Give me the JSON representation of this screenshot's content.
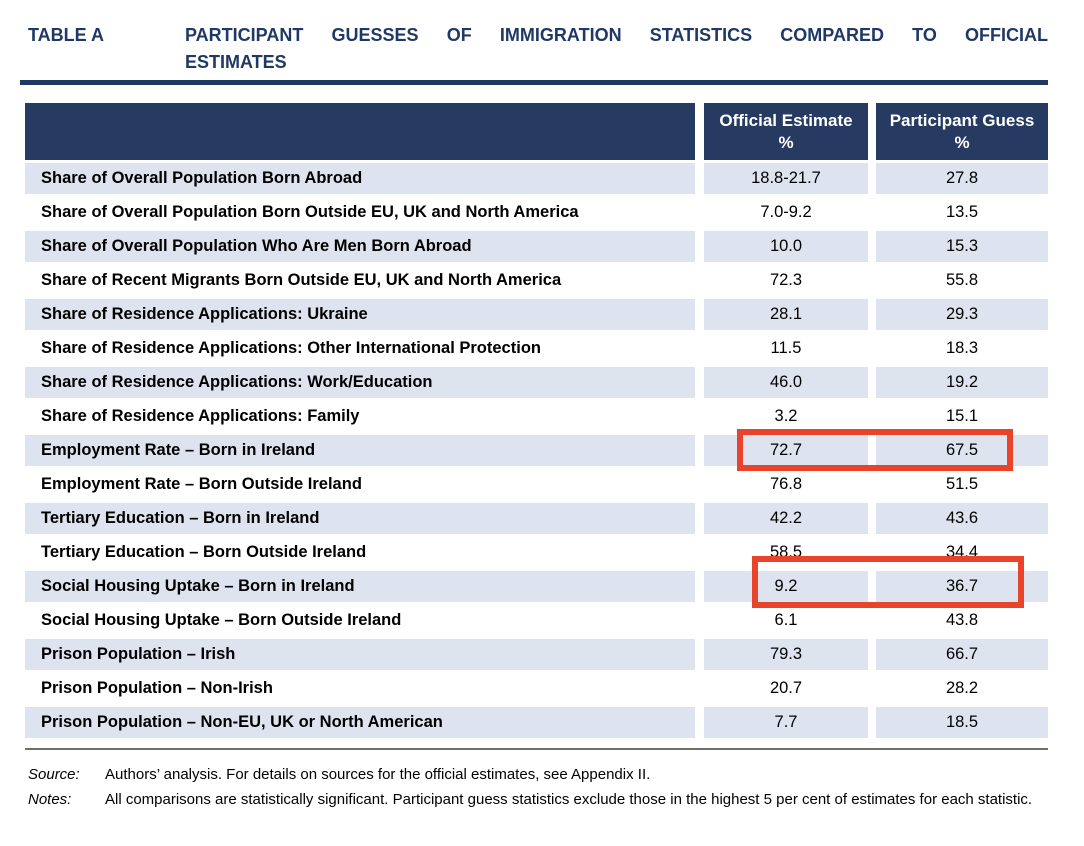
{
  "title": {
    "tag": "TABLE A",
    "line1": "PARTICIPANT GUESSES OF IMMIGRATION STATISTICS COMPARED TO OFFICIAL",
    "line2": "ESTIMATES"
  },
  "table": {
    "header": {
      "official_line1": "Official Estimate",
      "official_line2": "%",
      "guess_line1": "Participant Guess",
      "guess_line2": "%"
    },
    "rows": [
      {
        "label": "Share of Overall Population Born Abroad",
        "official": "18.8-21.7",
        "guess": "27.8",
        "highlighted": false
      },
      {
        "label": "Share of Overall Population Born Outside EU, UK and North America",
        "official": "7.0-9.2",
        "guess": "13.5",
        "highlighted": false
      },
      {
        "label": "Share of Overall Population Who Are Men Born Abroad",
        "official": "10.0",
        "guess": "15.3",
        "highlighted": false
      },
      {
        "label": "Share of Recent Migrants Born Outside EU, UK and North America",
        "official": "72.3",
        "guess": "55.8",
        "highlighted": false
      },
      {
        "label": "Share of Residence Applications: Ukraine",
        "official": "28.1",
        "guess": "29.3",
        "highlighted": false
      },
      {
        "label": "Share of Residence Applications: Other International Protection",
        "official": "11.5",
        "guess": "18.3",
        "highlighted": false
      },
      {
        "label": "Share of Residence Applications: Work/Education",
        "official": "46.0",
        "guess": "19.2",
        "highlighted": false
      },
      {
        "label": "Share of Residence Applications: Family",
        "official": "3.2",
        "guess": "15.1",
        "highlighted": false
      },
      {
        "label": "Employment Rate – Born in Ireland",
        "official": "72.7",
        "guess": "67.5",
        "highlighted": true
      },
      {
        "label": "Employment Rate – Born Outside Ireland",
        "official": "76.8",
        "guess": "51.5",
        "highlighted": false
      },
      {
        "label": "Tertiary Education – Born in Ireland",
        "official": "42.2",
        "guess": "43.6",
        "highlighted": false
      },
      {
        "label": "Tertiary Education – Born Outside Ireland",
        "official": "58.5",
        "guess": "34.4",
        "highlighted": false
      },
      {
        "label": "Social Housing Uptake – Born in Ireland",
        "official": "9.2",
        "guess": "36.7",
        "highlighted": true
      },
      {
        "label": "Social Housing Uptake – Born Outside Ireland",
        "official": "6.1",
        "guess": "43.8",
        "highlighted": false
      },
      {
        "label": "Prison Population – Irish",
        "official": "79.3",
        "guess": "66.7",
        "highlighted": false
      },
      {
        "label": "Prison Population – Non-Irish",
        "official": "20.7",
        "guess": "28.2",
        "highlighted": false
      },
      {
        "label": "Prison Population – Non-EU, UK or North American",
        "official": "7.7",
        "guess": "18.5",
        "highlighted": false
      }
    ]
  },
  "footer": {
    "source_label": "Source:",
    "source_text": "Authors’ analysis. For details on sources for the official estimates, see Appendix II.",
    "notes_label": "Notes:",
    "notes_text": "All comparisons are statistically significant. Participant guess statistics exclude those in the highest 5 per cent of estimates for each statistic."
  },
  "colors": {
    "header_navy": "#263A62",
    "title_navy": "#1F3864",
    "row_alt_blue": "#DEE4EF",
    "highlight_red": "#E8432B",
    "footer_rule_gray": "#6F6F6F"
  }
}
